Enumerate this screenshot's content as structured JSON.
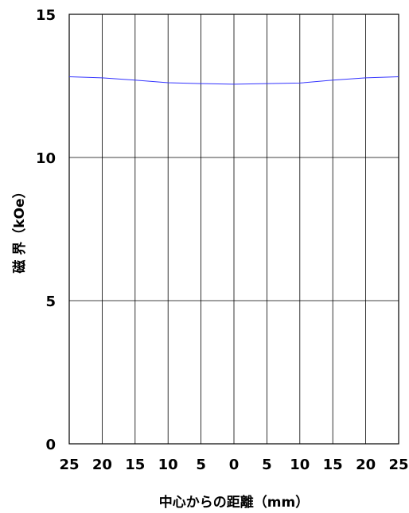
{
  "chart_data": {
    "type": "line",
    "xlabel": "中心からの距離（mm）",
    "ylabel": "磁 界（kOe）",
    "x_tick_labels": [
      "25",
      "20",
      "15",
      "10",
      "5",
      "0",
      "5",
      "10",
      "15",
      "20",
      "25"
    ],
    "y_tick_labels": [
      "0",
      "5",
      "10",
      "15"
    ],
    "xlim": [
      -25,
      25
    ],
    "ylim": [
      0,
      15
    ],
    "grid": true,
    "series": [
      {
        "color": "#3333ff",
        "x": [
          -25,
          -20,
          -15,
          -10,
          -5,
          0,
          5,
          10,
          15,
          20,
          25
        ],
        "y": [
          12.82,
          12.78,
          12.7,
          12.61,
          12.58,
          12.56,
          12.58,
          12.6,
          12.7,
          12.78,
          12.82
        ]
      }
    ]
  }
}
